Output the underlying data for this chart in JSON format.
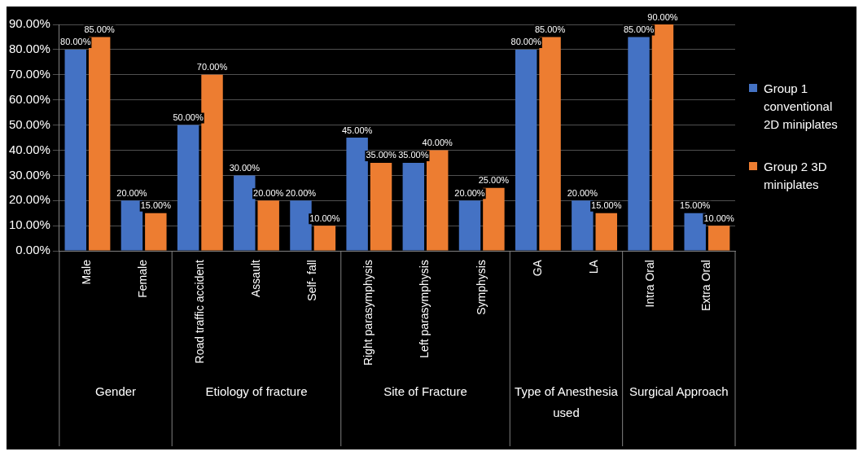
{
  "chart_data": {
    "type": "bar",
    "categories": [
      "Male",
      "Female",
      "Road traffic accident",
      "Assault",
      "Self- fall",
      "Right parasymphysis",
      "Left parasymphysis",
      "Symphysis",
      "GA",
      "LA",
      "Intra Oral",
      "Extra Oral"
    ],
    "series": [
      {
        "name": "Group 1 conventional 2D miniplates",
        "color": "#4472c4",
        "values": [
          80,
          20,
          50,
          30,
          20,
          45,
          35,
          20,
          80,
          20,
          85,
          15
        ],
        "value_labels": [
          "80.00%",
          "20.00%",
          "50.00%",
          "30.00%",
          "20.00%",
          "45.00%",
          "35.00%",
          "20.00%",
          "80.00%",
          "20.00%",
          "85.00%",
          "15.00%"
        ]
      },
      {
        "name": "Group 2 3D miniplates",
        "color": "#ed7d31",
        "values": [
          85,
          15,
          70,
          20,
          10,
          35,
          40,
          25,
          85,
          15,
          90,
          10
        ],
        "value_labels": [
          "85.00%",
          "15.00%",
          "70.00%",
          "20.00%",
          "10.00%",
          "35.00%",
          "40.00%",
          "25.00%",
          "85.00%",
          "15.00%",
          "90.00%",
          "10.00%"
        ]
      }
    ],
    "annotations": [
      "Gender",
      "Etiology of fracture",
      "Site of Fracture",
      "Type of Anesthesia used",
      "Surgical Approach"
    ],
    "ylim": [
      0,
      90
    ],
    "yticks": [
      {
        "value": 0,
        "label": "0.00%"
      },
      {
        "value": 10,
        "label": "10.00%"
      },
      {
        "value": 20,
        "label": "20.00%"
      },
      {
        "value": 30,
        "label": "30.00%"
      },
      {
        "value": 40,
        "label": "40.00%"
      },
      {
        "value": 50,
        "label": "50.00%"
      },
      {
        "value": 60,
        "label": "60.00%"
      },
      {
        "value": 70,
        "label": "70.00%"
      },
      {
        "value": 80,
        "label": "80.00%"
      },
      {
        "value": 90,
        "label": "90.00%"
      }
    ],
    "grid": "y",
    "legend": "right"
  }
}
